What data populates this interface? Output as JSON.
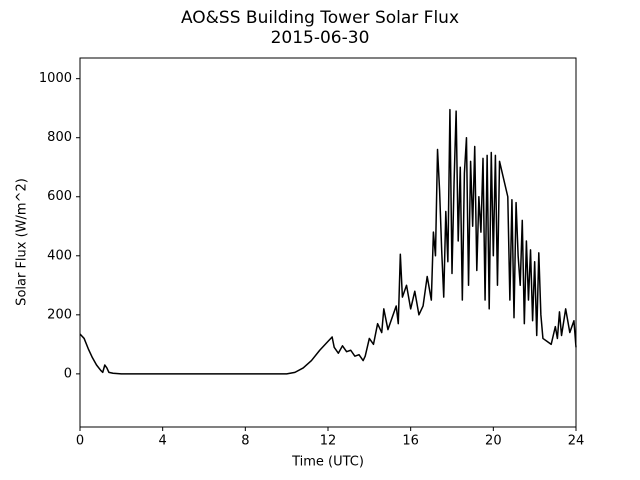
{
  "chart_data": {
    "type": "line",
    "title": "AO&SS Building Tower Solar Flux",
    "subtitle": "2015-06-30",
    "x_label": "Time (UTC)",
    "y_label": "Solar Flux (W/m^2)",
    "xlim": [
      0,
      24
    ],
    "xticks": [
      0,
      4,
      8,
      12,
      16,
      20,
      24
    ],
    "ylim": [
      -180,
      1070
    ],
    "yticks": [
      0,
      200,
      400,
      600,
      800,
      1000
    ],
    "series": [
      {
        "name": "Solar Flux",
        "color": "#000000",
        "x": [
          0,
          0.2,
          0.4,
          0.6,
          0.8,
          1.0,
          1.1,
          1.2,
          1.3,
          1.4,
          1.6,
          2,
          4,
          8,
          10,
          10.4,
          10.8,
          11.2,
          11.6,
          12.0,
          12.2,
          12.3,
          12.5,
          12.7,
          12.9,
          13.1,
          13.3,
          13.5,
          13.7,
          13.8,
          14.0,
          14.2,
          14.4,
          14.6,
          14.7,
          14.9,
          15.1,
          15.3,
          15.4,
          15.5,
          15.6,
          15.8,
          16.0,
          16.2,
          16.4,
          16.6,
          16.8,
          17.0,
          17.1,
          17.2,
          17.3,
          17.4,
          17.5,
          17.6,
          17.7,
          17.8,
          17.9,
          18.0,
          18.1,
          18.2,
          18.3,
          18.4,
          18.5,
          18.6,
          18.7,
          18.8,
          18.9,
          19.0,
          19.1,
          19.2,
          19.3,
          19.4,
          19.5,
          19.6,
          19.7,
          19.8,
          19.9,
          20.0,
          20.1,
          20.2,
          20.3,
          20.5,
          20.7,
          20.8,
          20.9,
          21.0,
          21.1,
          21.2,
          21.3,
          21.4,
          21.5,
          21.6,
          21.7,
          21.8,
          21.9,
          22.0,
          22.1,
          22.2,
          22.3,
          22.4,
          22.6,
          22.8,
          23.0,
          23.1,
          23.2,
          23.3,
          23.5,
          23.7,
          23.9,
          24.0
        ],
        "values": [
          135,
          120,
          85,
          55,
          30,
          12,
          5,
          30,
          20,
          5,
          2,
          0,
          0,
          0,
          0,
          5,
          20,
          45,
          80,
          110,
          125,
          90,
          70,
          95,
          75,
          80,
          60,
          65,
          45,
          60,
          120,
          100,
          170,
          140,
          220,
          150,
          190,
          230,
          170,
          405,
          260,
          300,
          220,
          280,
          200,
          230,
          330,
          250,
          480,
          400,
          760,
          620,
          420,
          260,
          550,
          380,
          895,
          340,
          650,
          890,
          450,
          700,
          250,
          680,
          800,
          300,
          720,
          500,
          770,
          350,
          600,
          480,
          730,
          250,
          740,
          220,
          750,
          400,
          740,
          300,
          720,
          660,
          600,
          250,
          590,
          190,
          580,
          400,
          300,
          520,
          170,
          450,
          250,
          420,
          180,
          380,
          130,
          410,
          200,
          120,
          110,
          100,
          160,
          120,
          210,
          130,
          220,
          140,
          180,
          90
        ]
      }
    ]
  }
}
